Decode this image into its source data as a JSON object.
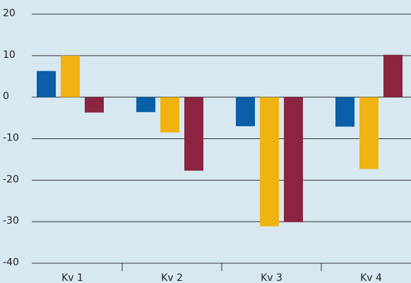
{
  "chart_data": {
    "type": "bar",
    "categories": [
      "Kv 1",
      "Kv 2",
      "Kv 3",
      "Kv 4"
    ],
    "series": [
      {
        "color": "#0a5fa8",
        "values": [
          6.3,
          -3.6,
          -7,
          -7.1
        ]
      },
      {
        "color": "#efb312",
        "values": [
          10,
          -8.5,
          -31.1,
          -17.3
        ]
      },
      {
        "color": "#8a2440",
        "values": [
          -3.7,
          -17.7,
          -30.1,
          10.2
        ]
      }
    ],
    "ylim": [
      -40,
      20
    ],
    "yticks": [
      -40,
      -30,
      -20,
      -10,
      0,
      10,
      20
    ],
    "grid": true
  }
}
